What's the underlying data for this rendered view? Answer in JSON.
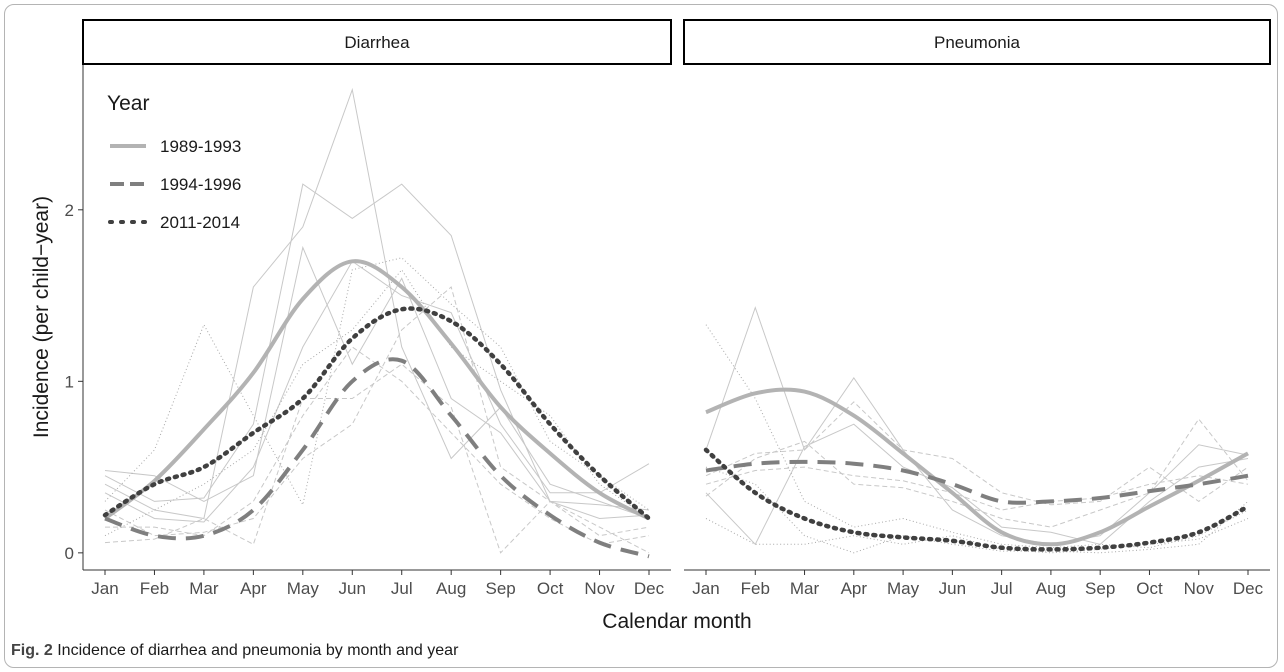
{
  "figure": {
    "label": "Fig. 2",
    "caption": "Incidence of diarrhea and pneumonia by month and year"
  },
  "colors": {
    "frame_border": "#b4b4b4",
    "strip_border": "#000000",
    "axis": "#333333",
    "smooth_light": "#b3b3b3",
    "smooth_mid": "#7f7f7f",
    "smooth_dark": "#404040",
    "thin_lines": "#c8c8c8"
  },
  "chart_data": {
    "type": "line",
    "xlabel": "Calendar month",
    "ylabel": "Incidence (per child−year)",
    "categories": [
      "Jan",
      "Feb",
      "Mar",
      "Apr",
      "May",
      "Jun",
      "Jul",
      "Aug",
      "Sep",
      "Oct",
      "Nov",
      "Dec"
    ],
    "y_ticks": [
      0,
      1,
      2
    ],
    "ylim": [
      -0.1,
      2.85
    ],
    "grid": false,
    "legend": {
      "title": "Year",
      "placement": "top-left",
      "entries": [
        {
          "label": "1989-1993",
          "style": "solid"
        },
        {
          "label": "1994-1996",
          "style": "dashed"
        },
        {
          "label": "2011-2014",
          "style": "dotted"
        }
      ]
    },
    "panels": [
      {
        "title": "Diarrhea",
        "series": [
          {
            "name": "1989-1993",
            "style": "solid",
            "role": "smooth",
            "values": [
              0.2,
              0.42,
              0.72,
              1.05,
              1.48,
              1.7,
              1.55,
              1.22,
              0.85,
              0.58,
              0.35,
              0.2
            ]
          },
          {
            "name": "1994-1996",
            "style": "dashed",
            "role": "smooth",
            "values": [
              0.2,
              0.1,
              0.1,
              0.25,
              0.6,
              1.0,
              1.12,
              0.8,
              0.45,
              0.22,
              0.06,
              -0.02
            ]
          },
          {
            "name": "2011-2014",
            "style": "dotted",
            "role": "smooth",
            "values": [
              0.22,
              0.4,
              0.5,
              0.7,
              0.9,
              1.25,
              1.42,
              1.35,
              1.1,
              0.75,
              0.45,
              0.2
            ]
          },
          {
            "style": "solid",
            "role": "yearly",
            "values": [
              0.45,
              0.3,
              0.32,
              0.75,
              2.15,
              1.95,
              2.15,
              1.85,
              0.95,
              0.3,
              0.28,
              0.25
            ]
          },
          {
            "style": "solid",
            "role": "yearly",
            "values": [
              0.4,
              0.25,
              0.2,
              1.55,
              1.9,
              2.7,
              1.2,
              0.55,
              0.85,
              0.4,
              0.3,
              0.2
            ]
          },
          {
            "style": "solid",
            "role": "yearly",
            "values": [
              0.35,
              0.2,
              0.18,
              0.5,
              1.2,
              1.7,
              1.5,
              1.4,
              0.75,
              0.35,
              0.35,
              0.52
            ]
          },
          {
            "style": "solid",
            "role": "yearly",
            "values": [
              0.48,
              0.45,
              0.3,
              0.45,
              1.78,
              1.1,
              1.6,
              0.9,
              0.7,
              0.3,
              0.2,
              0.22
            ]
          },
          {
            "style": "dashed",
            "role": "yearly",
            "values": [
              0.25,
              0.1,
              0.12,
              0.2,
              0.55,
              0.75,
              1.3,
              1.55,
              0.5,
              0.3,
              0.1,
              0.15
            ]
          },
          {
            "style": "dashed",
            "role": "yearly",
            "values": [
              0.15,
              0.15,
              0.1,
              0.3,
              0.8,
              1.2,
              1.0,
              0.7,
              0.4,
              0.2,
              0.05,
              0.1
            ]
          },
          {
            "style": "dashed",
            "role": "yearly",
            "values": [
              0.06,
              0.08,
              0.2,
              0.05,
              0.9,
              0.9,
              1.1,
              0.85,
              0.0,
              0.3,
              0.15,
              0.0
            ]
          },
          {
            "style": "dotted",
            "role": "yearly",
            "values": [
              0.3,
              0.6,
              1.33,
              0.8,
              0.28,
              1.65,
              1.72,
              1.45,
              1.2,
              0.65,
              0.45,
              0.25
            ]
          },
          {
            "style": "dotted",
            "role": "yearly",
            "values": [
              0.1,
              0.25,
              0.4,
              0.6,
              1.1,
              1.3,
              1.65,
              1.2,
              1.0,
              0.8,
              0.4,
              0.2
            ]
          }
        ]
      },
      {
        "title": "Pneumonia",
        "series": [
          {
            "name": "1989-1993",
            "style": "solid",
            "role": "smooth",
            "values": [
              0.82,
              0.93,
              0.94,
              0.8,
              0.58,
              0.35,
              0.12,
              0.05,
              0.12,
              0.27,
              0.42,
              0.58
            ]
          },
          {
            "name": "1994-1996",
            "style": "dashed",
            "role": "smooth",
            "values": [
              0.48,
              0.52,
              0.53,
              0.52,
              0.48,
              0.4,
              0.3,
              0.3,
              0.32,
              0.36,
              0.4,
              0.45
            ]
          },
          {
            "name": "2011-2014",
            "style": "dotted",
            "role": "smooth",
            "values": [
              0.6,
              0.35,
              0.2,
              0.12,
              0.09,
              0.07,
              0.03,
              0.02,
              0.03,
              0.06,
              0.12,
              0.27
            ]
          },
          {
            "style": "solid",
            "role": "yearly",
            "values": [
              0.6,
              1.43,
              0.6,
              1.02,
              0.6,
              0.25,
              0.1,
              0.05,
              0.1,
              0.35,
              0.63,
              0.57
            ]
          },
          {
            "style": "solid",
            "role": "yearly",
            "values": [
              0.35,
              0.05,
              0.62,
              0.75,
              0.5,
              0.38,
              0.15,
              0.12,
              0.05,
              0.3,
              0.5,
              0.55
            ]
          },
          {
            "style": "dashed",
            "role": "yearly",
            "values": [
              0.45,
              0.58,
              0.6,
              0.88,
              0.6,
              0.55,
              0.35,
              0.28,
              0.3,
              0.5,
              0.3,
              0.5
            ]
          },
          {
            "style": "dashed",
            "role": "yearly",
            "values": [
              0.33,
              0.55,
              0.65,
              0.4,
              0.38,
              0.3,
              0.2,
              0.15,
              0.25,
              0.35,
              0.78,
              0.42
            ]
          },
          {
            "style": "dashed",
            "role": "yearly",
            "values": [
              0.4,
              0.48,
              0.5,
              0.45,
              0.42,
              0.35,
              0.25,
              0.3,
              0.32,
              0.4,
              0.45,
              0.4
            ]
          },
          {
            "style": "dotted",
            "role": "yearly",
            "values": [
              1.33,
              0.9,
              0.3,
              0.15,
              0.2,
              0.12,
              0.05,
              0.03,
              0.05,
              0.03,
              0.1,
              0.25
            ]
          },
          {
            "style": "dotted",
            "role": "yearly",
            "values": [
              0.2,
              0.05,
              0.05,
              0.1,
              0.05,
              0.1,
              0.02,
              0.0,
              0.02,
              0.05,
              0.08,
              0.2
            ]
          },
          {
            "style": "dotted",
            "role": "yearly",
            "values": [
              0.5,
              0.4,
              0.1,
              0.0,
              0.1,
              0.05,
              0.01,
              0.01,
              0.0,
              0.02,
              0.05,
              0.3
            ]
          }
        ]
      }
    ]
  }
}
